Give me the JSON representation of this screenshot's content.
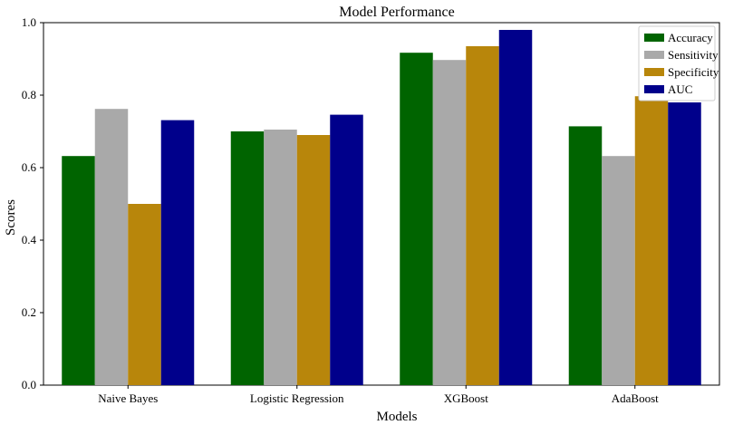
{
  "chart_data": {
    "type": "bar",
    "title": "Model Performance",
    "xlabel": "Models",
    "ylabel": "Scores",
    "ylim": [
      0,
      1.0
    ],
    "yticks": [
      "0.0",
      "0.2",
      "0.4",
      "0.6",
      "0.8",
      "1.0"
    ],
    "grid": false,
    "legend_position": "top-right",
    "categories": [
      "Naive Bayes",
      "Logistic Regression",
      "XGBoost",
      "AdaBoost"
    ],
    "series": [
      {
        "name": "Accuracy",
        "color": "#006400",
        "values": [
          0.632,
          0.7,
          0.917,
          0.714
        ]
      },
      {
        "name": "Sensitivity",
        "color": "#a9a9a9",
        "values": [
          0.762,
          0.705,
          0.897,
          0.632
        ]
      },
      {
        "name": "Specificity",
        "color": "#b8860b",
        "values": [
          0.5,
          0.69,
          0.935,
          0.797
        ]
      },
      {
        "name": "AUC",
        "color": "#00008b",
        "values": [
          0.731,
          0.746,
          0.98,
          0.78
        ]
      }
    ]
  }
}
